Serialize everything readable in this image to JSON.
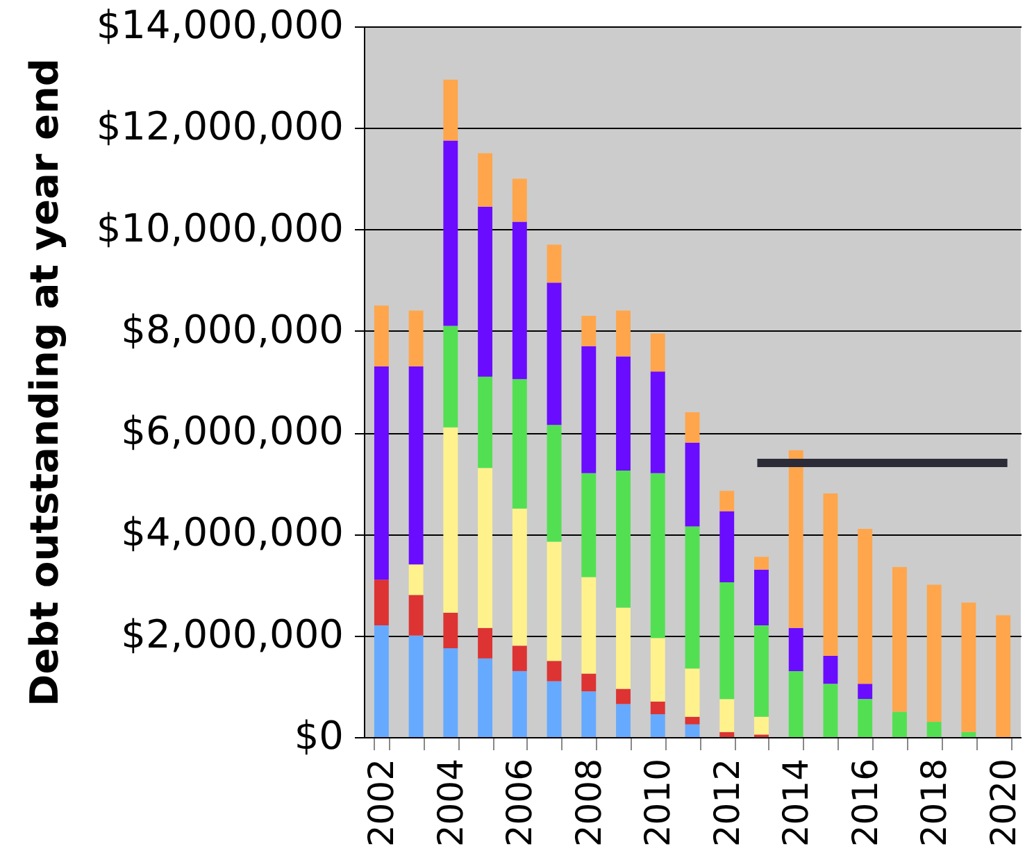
{
  "chart_data": {
    "type": "bar",
    "stacked": true,
    "ylabel": "Debt outstanding at year end",
    "categories": [
      "2002",
      null,
      "2004",
      null,
      "2006",
      null,
      "2008",
      null,
      "2010",
      null,
      "2012",
      null,
      "2014",
      null,
      "2016",
      null,
      "2018",
      null,
      "2020"
    ],
    "ylim": [
      0,
      14000000
    ],
    "yticks": [
      {
        "value": 0,
        "label": "$0"
      },
      {
        "value": 2000000,
        "label": "$2,000,000"
      },
      {
        "value": 4000000,
        "label": "$4,000,000"
      },
      {
        "value": 6000000,
        "label": "$6,000,000"
      },
      {
        "value": 8000000,
        "label": "$8,000,000"
      },
      {
        "value": 10000000,
        "label": "$10,000,000"
      },
      {
        "value": 12000000,
        "label": "$12,000,000"
      },
      {
        "value": 14000000,
        "label": "$14,000,000"
      }
    ],
    "grid": "y",
    "series": [
      {
        "color": "#66aaff",
        "values": [
          2200000,
          2000000,
          1750000,
          1550000,
          1300000,
          1100000,
          900000,
          650000,
          450000,
          250000,
          null,
          null,
          null,
          null,
          null,
          null,
          null,
          null,
          null
        ]
      },
      {
        "color": "#dd3333",
        "values": [
          900000,
          800000,
          700000,
          600000,
          500000,
          400000,
          350000,
          300000,
          250000,
          150000,
          100000,
          50000,
          null,
          null,
          null,
          null,
          null,
          null,
          null
        ]
      },
      {
        "color": "#fff28c",
        "values": [
          null,
          600000,
          3650000,
          3150000,
          2700000,
          2350000,
          1900000,
          1600000,
          1250000,
          950000,
          650000,
          350000,
          null,
          null,
          null,
          null,
          null,
          null,
          null
        ]
      },
      {
        "color": "#52e052",
        "values": [
          null,
          null,
          2000000,
          1800000,
          2550000,
          2300000,
          2050000,
          2700000,
          3250000,
          2800000,
          2300000,
          1800000,
          1300000,
          1050000,
          750000,
          500000,
          300000,
          100000,
          null
        ]
      },
      {
        "color": "#6a0cff",
        "values": [
          4200000,
          3900000,
          3650000,
          3350000,
          3100000,
          2800000,
          2500000,
          2250000,
          2000000,
          1650000,
          1400000,
          1100000,
          850000,
          550000,
          300000,
          null,
          null,
          null,
          null
        ]
      },
      {
        "color": "#ffa64c",
        "values": [
          1200000,
          1100000,
          1200000,
          1050000,
          850000,
          750000,
          600000,
          900000,
          750000,
          600000,
          400000,
          250000,
          3500000,
          3200000,
          3050000,
          2850000,
          2700000,
          2550000,
          2400000
        ]
      },
      {
        "type": "line",
        "color": "#2c2c38",
        "values": [
          null,
          null,
          null,
          null,
          null,
          null,
          null,
          null,
          null,
          null,
          null,
          5400000,
          5400000,
          5400000,
          5400000,
          5400000,
          5400000,
          5400000,
          5400000
        ]
      }
    ]
  }
}
